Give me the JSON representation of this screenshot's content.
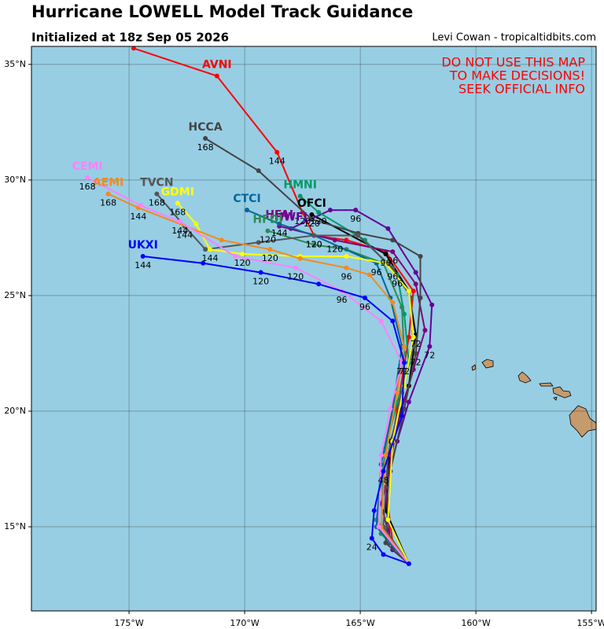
{
  "chart_data": {
    "type": "line",
    "title": "Hurricane LOWELL Model Track Guidance",
    "subtitle": "Initialized at 18z Sep 05 2026",
    "credit": "Levi Cowan - tropicaltidbits.com",
    "annotations": [
      "DO NOT USE THIS MAP",
      "TO MAKE DECISIONS!",
      "SEEK OFFICIAL INFO"
    ],
    "xlim": [
      -179.22,
      -154.8
    ],
    "ylim": [
      11.36,
      35.78
    ],
    "xticks": [
      {
        "value": -175,
        "label": "175°W"
      },
      {
        "value": -170,
        "label": "170°W"
      },
      {
        "value": -165,
        "label": "165°W"
      },
      {
        "value": -160,
        "label": "160°W"
      },
      {
        "value": -155,
        "label": "155°W"
      }
    ],
    "yticks": [
      {
        "value": 15,
        "label": "15°N"
      },
      {
        "value": 20,
        "label": "20°N"
      },
      {
        "value": 25,
        "label": "25°N"
      },
      {
        "value": 30,
        "label": "30°N"
      },
      {
        "value": 35,
        "label": "35°N"
      }
    ],
    "grid": true,
    "series": [
      {
        "name": "AVNI",
        "color": "#ff0000",
        "x": [
          -162.9,
          -163.6,
          -163.9,
          -163.4,
          -162.9,
          -162.7,
          -163.9,
          -165.6,
          -167.0,
          -167.5,
          -168.6,
          -171.2,
          -174.8
        ],
        "values": [
          13.4,
          14.3,
          16.7,
          20.1,
          23.2,
          25.2,
          26.9,
          27.4,
          27.6,
          28.6,
          31.2,
          34.5,
          35.7
        ],
        "hours": [
          null,
          null,
          null,
          null,
          null,
          null,
          null,
          null,
          null,
          120,
          144,
          null,
          null
        ]
      },
      {
        "name": "OFCI",
        "color": "#000000",
        "x": [
          -162.9,
          -163.9,
          -163.7,
          -162.9,
          -162.6,
          -162.9,
          -163.9,
          -167.1
        ],
        "values": [
          13.4,
          15.7,
          18.7,
          21.1,
          23.3,
          25.2,
          26.8,
          28.5
        ],
        "hours": [
          null,
          null,
          null,
          null,
          72,
          null,
          96,
          120
        ]
      },
      {
        "name": "HWFI",
        "color": "#660099",
        "x": [
          -162.9,
          -163.6,
          -164.1,
          -163.4,
          -162.9,
          -162.0,
          -161.9,
          -162.6,
          -163.8,
          -165.2,
          -166.3,
          -168.0
        ],
        "values": [
          13.4,
          14.0,
          16.0,
          18.7,
          20.4,
          22.8,
          24.6,
          26.0,
          27.9,
          28.7,
          28.7,
          27.9
        ],
        "hours": [
          null,
          null,
          null,
          null,
          null,
          72,
          null,
          null,
          null,
          96,
          null,
          null
        ]
      },
      {
        "name": "HMNI",
        "color": "#009966",
        "x": [
          -162.9,
          -164.3,
          -163.9,
          -163.4,
          -162.9,
          -163.1,
          -163.4,
          -164.8,
          -166.8,
          -167.6
        ],
        "values": [
          13.4,
          15.3,
          18.4,
          20.4,
          22.1,
          24.2,
          25.9,
          27.4,
          28.6,
          29.3
        ],
        "hours": [
          null,
          null,
          null,
          null,
          null,
          null,
          96,
          null,
          120,
          null
        ]
      },
      {
        "name": "HFAI",
        "color": "#800080",
        "x": [
          -162.9,
          -163.7,
          -163.9,
          -163.4,
          -162.7,
          -162.2,
          -162.6,
          -163.6,
          -166.1,
          -168.5
        ],
        "values": [
          13.4,
          14.3,
          16.7,
          19.4,
          21.8,
          23.5,
          25.5,
          26.9,
          27.4,
          28.0
        ],
        "hours": [
          null,
          null,
          null,
          null,
          null,
          null,
          null,
          96,
          120,
          null
        ]
      },
      {
        "name": "HFDI",
        "color": "#2e8b57",
        "x": [
          -162.9,
          -164.1,
          -164.0,
          -163.6,
          -163.1,
          -163.2,
          -164.0,
          -165.6,
          -167.0,
          -169.0
        ],
        "values": [
          13.4,
          14.7,
          17.4,
          20.1,
          22.5,
          24.5,
          26.4,
          27.0,
          27.2,
          27.8
        ],
        "hours": [
          null,
          null,
          null,
          null,
          null,
          null,
          null,
          null,
          null,
          120
        ]
      },
      {
        "name": "CTCI",
        "color": "#006699",
        "x": [
          -162.9,
          -164.3,
          -164.1,
          -163.6,
          -163.2,
          -163.7,
          -164.3,
          -167.0,
          -168.5,
          -169.9
        ],
        "values": [
          13.4,
          15.0,
          17.7,
          20.1,
          22.8,
          24.9,
          26.4,
          27.6,
          28.1,
          28.7
        ],
        "hours": [
          null,
          null,
          null,
          null,
          null,
          null,
          96,
          120,
          144,
          null
        ]
      },
      {
        "name": "HCCA",
        "color": "#444444",
        "x": [
          -162.9,
          -163.9,
          -163.7,
          -163.1,
          -162.6,
          -162.4,
          -162.4,
          -163.6,
          -165.1,
          -167.1,
          -169.4,
          -171.7
        ],
        "values": [
          13.4,
          14.3,
          17.4,
          20.1,
          22.5,
          24.9,
          26.7,
          27.4,
          27.7,
          28.3,
          30.4,
          31.8
        ],
        "hours": [
          null,
          null,
          null,
          null,
          72,
          null,
          null,
          null,
          null,
          null,
          null,
          168
        ]
      },
      {
        "name": "TVCN",
        "color": "#555555",
        "x": [
          -162.9,
          -164.0,
          -163.8,
          -163.2,
          -162.7,
          -162.8,
          -163.6,
          -165.1,
          -167.0,
          -169.4,
          -171.7,
          -172.6,
          -173.8
        ],
        "values": [
          13.4,
          15.0,
          18.1,
          20.8,
          22.8,
          24.9,
          26.2,
          27.6,
          27.6,
          27.3,
          27.0,
          28.0,
          29.4
        ],
        "hours": [
          null,
          null,
          null,
          null,
          null,
          null,
          96,
          null,
          120,
          null,
          null,
          144,
          168
        ]
      },
      {
        "name": "GDMI",
        "color": "#ffff00",
        "x": [
          -162.9,
          -163.8,
          -163.6,
          -163.1,
          -162.7,
          -162.9,
          -163.9,
          -165.6,
          -167.6,
          -170.1,
          -171.5,
          -172.1,
          -172.9
        ],
        "values": [
          13.4,
          15.3,
          18.7,
          21.1,
          23.2,
          25.2,
          26.4,
          26.7,
          26.7,
          26.8,
          27.0,
          28.1,
          29.0
        ],
        "hours": [
          null,
          null,
          null,
          null,
          null,
          null,
          null,
          null,
          null,
          120,
          144,
          null,
          168
        ]
      },
      {
        "name": "AEMI",
        "color": "#f28a1e",
        "x": [
          -162.9,
          -164.1,
          -163.9,
          -163.4,
          -163.1,
          -163.6,
          -164.6,
          -165.6,
          -167.6,
          -168.9,
          -171.0,
          -174.6,
          -175.9
        ],
        "values": [
          13.4,
          15.0,
          18.1,
          20.8,
          22.8,
          24.7,
          25.9,
          26.2,
          26.6,
          27.0,
          27.4,
          28.8,
          29.4
        ],
        "hours": [
          null,
          null,
          null,
          null,
          null,
          null,
          null,
          96,
          null,
          120,
          null,
          144,
          168
        ]
      },
      {
        "name": "CEMI",
        "color": "#ff80ff",
        "x": [
          -162.9,
          -164.2,
          -164.1,
          -163.7,
          -163.2,
          -164.1,
          -165.8,
          -167.8,
          -170.4,
          -172.8,
          -174.5,
          -176.8
        ],
        "values": [
          13.4,
          15.0,
          18.1,
          20.1,
          22.1,
          23.9,
          25.2,
          26.2,
          26.7,
          28.2,
          28.9,
          30.1
        ],
        "hours": [
          null,
          null,
          null,
          null,
          72,
          null,
          96,
          120,
          null,
          144,
          null,
          168
        ]
      },
      {
        "name": "UKXI",
        "color": "#0000ff",
        "x": [
          -162.9,
          -164.0,
          -164.5,
          -164.4,
          -164.0,
          -163.2,
          -163.1,
          -163.6,
          -164.8,
          -166.8,
          -169.3,
          -171.8,
          -174.4
        ],
        "values": [
          13.4,
          13.8,
          14.5,
          15.7,
          17.4,
          19.8,
          22.1,
          23.9,
          24.9,
          25.5,
          26.0,
          26.4,
          26.7
        ],
        "hours": [
          null,
          null,
          24,
          null,
          48,
          null,
          72,
          null,
          96,
          null,
          120,
          null,
          144
        ]
      }
    ]
  }
}
